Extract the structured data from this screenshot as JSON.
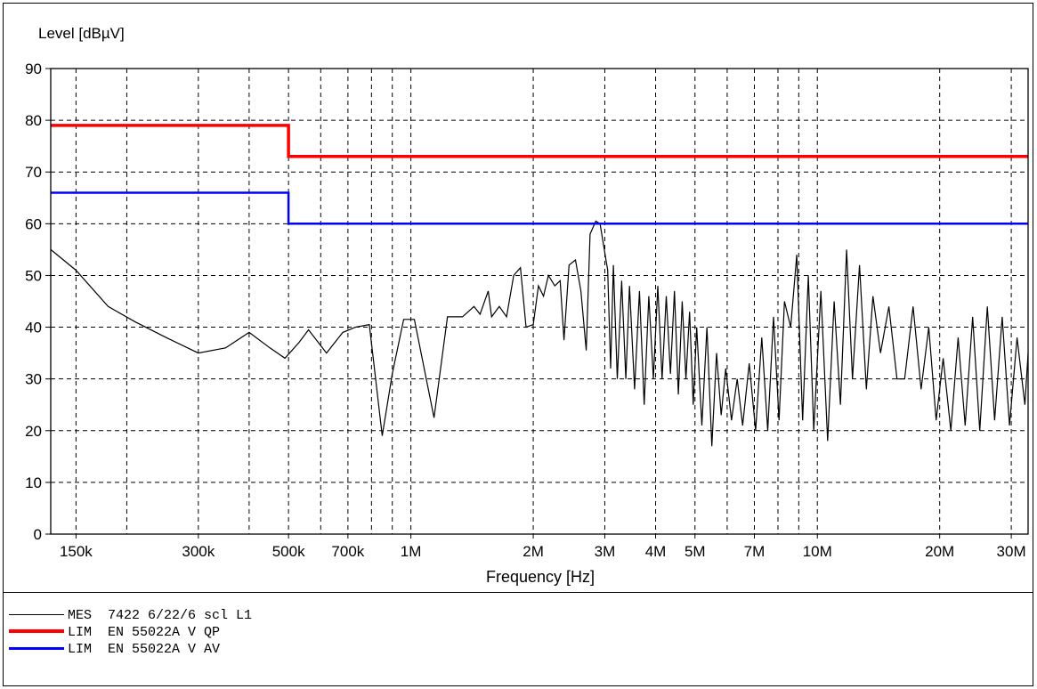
{
  "chart_data": {
    "type": "line",
    "ylabel": "Level [dBµV]",
    "xlabel": "Frequency [Hz]",
    "xscale": "log",
    "xlim": [
      130000,
      33000000
    ],
    "ylim": [
      0,
      90
    ],
    "yticks": [
      0,
      10,
      20,
      30,
      40,
      50,
      60,
      70,
      80,
      90
    ],
    "xticks": [
      {
        "value": 150000,
        "label": "150k"
      },
      {
        "value": 300000,
        "label": "300k"
      },
      {
        "value": 500000,
        "label": "500k"
      },
      {
        "value": 700000,
        "label": "700k"
      },
      {
        "value": 1000000,
        "label": "1M"
      },
      {
        "value": 2000000,
        "label": "2M"
      },
      {
        "value": 3000000,
        "label": "3M"
      },
      {
        "value": 4000000,
        "label": "4M"
      },
      {
        "value": 5000000,
        "label": "5M"
      },
      {
        "value": 7000000,
        "label": "7M"
      },
      {
        "value": 10000000,
        "label": "10M"
      },
      {
        "value": 20000000,
        "label": "20M"
      },
      {
        "value": 30000000,
        "label": "30M"
      }
    ],
    "grid_x": [
      150000,
      200000,
      300000,
      400000,
      500000,
      600000,
      700000,
      800000,
      900000,
      1000000,
      2000000,
      3000000,
      4000000,
      5000000,
      6000000,
      7000000,
      8000000,
      9000000,
      10000000,
      20000000,
      30000000
    ],
    "grid": true,
    "series": [
      {
        "name": "MES  7422 6/22/6 scl L1",
        "color": "#000000",
        "points": [
          [
            130000,
            55
          ],
          [
            150000,
            51
          ],
          [
            180000,
            44
          ],
          [
            210000,
            41
          ],
          [
            250000,
            38
          ],
          [
            300000,
            35
          ],
          [
            350000,
            36
          ],
          [
            400000,
            39
          ],
          [
            450000,
            36
          ],
          [
            490000,
            34
          ],
          [
            530000,
            37
          ],
          [
            560000,
            39.5
          ],
          [
            620000,
            35
          ],
          [
            680000,
            39
          ],
          [
            730000,
            40
          ],
          [
            790000,
            40.5
          ],
          [
            850000,
            19
          ],
          [
            900000,
            31
          ],
          [
            960000,
            41.5
          ],
          [
            1020000,
            41.5
          ],
          [
            1140000,
            22.5
          ],
          [
            1230000,
            42
          ],
          [
            1340000,
            42
          ],
          [
            1430000,
            44
          ],
          [
            1480000,
            42.5
          ],
          [
            1550000,
            47
          ],
          [
            1580000,
            42
          ],
          [
            1650000,
            44
          ],
          [
            1720000,
            42
          ],
          [
            1790000,
            50
          ],
          [
            1860000,
            51.5
          ],
          [
            1920000,
            40
          ],
          [
            2000000,
            40.5
          ],
          [
            2060000,
            48
          ],
          [
            2120000,
            46
          ],
          [
            2180000,
            50
          ],
          [
            2260000,
            48
          ],
          [
            2330000,
            49
          ],
          [
            2380000,
            37.5
          ],
          [
            2450000,
            52
          ],
          [
            2540000,
            53
          ],
          [
            2620000,
            47
          ],
          [
            2700000,
            35.5
          ],
          [
            2760000,
            58
          ],
          [
            2850000,
            60.5
          ],
          [
            2920000,
            60
          ],
          [
            3050000,
            51
          ],
          [
            3100000,
            32
          ],
          [
            3150000,
            52
          ],
          [
            3220000,
            30
          ],
          [
            3300000,
            49
          ],
          [
            3380000,
            30
          ],
          [
            3450000,
            48
          ],
          [
            3550000,
            28
          ],
          [
            3650000,
            47
          ],
          [
            3750000,
            25
          ],
          [
            3850000,
            46
          ],
          [
            3950000,
            30
          ],
          [
            4050000,
            48
          ],
          [
            4150000,
            30
          ],
          [
            4250000,
            46
          ],
          [
            4350000,
            31
          ],
          [
            4450000,
            47
          ],
          [
            4550000,
            27
          ],
          [
            4650000,
            45
          ],
          [
            4750000,
            30
          ],
          [
            4850000,
            43
          ],
          [
            4950000,
            25
          ],
          [
            5050000,
            40
          ],
          [
            5200000,
            21
          ],
          [
            5350000,
            40
          ],
          [
            5500000,
            17
          ],
          [
            5650000,
            35
          ],
          [
            5800000,
            23
          ],
          [
            5950000,
            32
          ],
          [
            6150000,
            22
          ],
          [
            6350000,
            30
          ],
          [
            6550000,
            21
          ],
          [
            6800000,
            33
          ],
          [
            7050000,
            20
          ],
          [
            7300000,
            38
          ],
          [
            7550000,
            20
          ],
          [
            7800000,
            42
          ],
          [
            8050000,
            22
          ],
          [
            8300000,
            45
          ],
          [
            8600000,
            40
          ],
          [
            8900000,
            54
          ],
          [
            9200000,
            22
          ],
          [
            9500000,
            50
          ],
          [
            9800000,
            20
          ],
          [
            10200000,
            47
          ],
          [
            10600000,
            18
          ],
          [
            11000000,
            45
          ],
          [
            11400000,
            25
          ],
          [
            11800000,
            55
          ],
          [
            12200000,
            30
          ],
          [
            12700000,
            52
          ],
          [
            13200000,
            28
          ],
          [
            13700000,
            46
          ],
          [
            14300000,
            35
          ],
          [
            15000000,
            44
          ],
          [
            15700000,
            30
          ],
          [
            16400000,
            30
          ],
          [
            17200000,
            44
          ],
          [
            18000000,
            28
          ],
          [
            18800000,
            40
          ],
          [
            19600000,
            22
          ],
          [
            20400000,
            34
          ],
          [
            21300000,
            20
          ],
          [
            22200000,
            38
          ],
          [
            23100000,
            21
          ],
          [
            24100000,
            42
          ],
          [
            25100000,
            20
          ],
          [
            26200000,
            44
          ],
          [
            27300000,
            22
          ],
          [
            28500000,
            42
          ],
          [
            29700000,
            21
          ],
          [
            31000000,
            38
          ],
          [
            32400000,
            25
          ],
          [
            33000000,
            35
          ]
        ]
      },
      {
        "name": "LIM  EN 55022A V QP",
        "color": "#ff0000",
        "points": [
          [
            130000,
            79
          ],
          [
            500000,
            79
          ],
          [
            500000,
            73
          ],
          [
            33000000,
            73
          ]
        ]
      },
      {
        "name": "LIM  EN 55022A V AV",
        "color": "#0000ff",
        "points": [
          [
            130000,
            66
          ],
          [
            500000,
            66
          ],
          [
            500000,
            60
          ],
          [
            33000000,
            60
          ]
        ]
      }
    ],
    "legend_position": "bottom-left"
  }
}
